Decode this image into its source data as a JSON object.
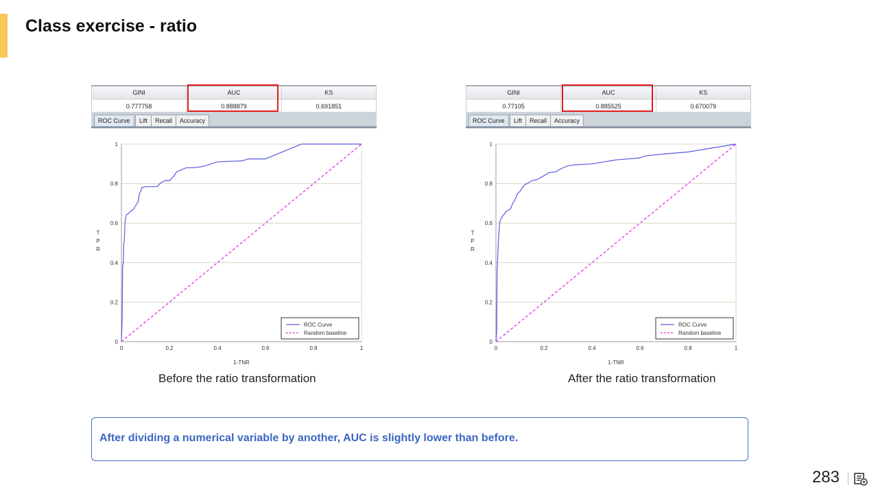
{
  "slide": {
    "title": "Class exercise - ratio",
    "page_number": "283",
    "note": "After dividing a numerical variable by another, AUC is slightly lower than before.",
    "colors": {
      "accent": "#f7c75a",
      "roc": "#5a5ae0",
      "baseline": "#e62ee6",
      "highlight": "#e21b1b",
      "note": "#3c66c2"
    }
  },
  "panels": [
    {
      "caption": "Before the ratio transformation",
      "metrics": {
        "headers": [
          "GINI",
          "AUC",
          "KS"
        ],
        "values": [
          "0.777758",
          "0.888879",
          "0.691851"
        ]
      },
      "tabs": [
        "ROC Curve",
        "Lift",
        "Recall",
        "Accuracy"
      ],
      "active_tab": "ROC Curve"
    },
    {
      "caption": "After the ratio transformation",
      "metrics": {
        "headers": [
          "GINI",
          "AUC",
          "KS"
        ],
        "values": [
          "0.77105",
          "0.885525",
          "0.670079"
        ]
      },
      "tabs": [
        "ROC Curve",
        "Lift",
        "Recall",
        "Accuracy"
      ],
      "active_tab": "ROC Curve"
    }
  ],
  "chart_data": [
    {
      "type": "line",
      "xlabel": "1-TNR",
      "ylabel": "TPR",
      "xlim": [
        0,
        1
      ],
      "ylim": [
        0,
        1
      ],
      "x_ticks": [
        "0",
        "0.2",
        "0.4",
        "0.6",
        "0.8",
        "1"
      ],
      "y_ticks": [
        "0",
        "0.2",
        "0.4",
        "0.6",
        "0.8",
        "1"
      ],
      "legend_position": "bottom-right",
      "series": [
        {
          "name": "ROC Curve",
          "x": [
            0,
            0.003,
            0.005,
            0.008,
            0.01,
            0.012,
            0.015,
            0.018,
            0.02,
            0.025,
            0.03,
            0.04,
            0.045,
            0.05,
            0.055,
            0.06,
            0.065,
            0.07,
            0.075,
            0.08,
            0.085,
            0.09,
            0.1,
            0.12,
            0.15,
            0.16,
            0.18,
            0.2,
            0.22,
            0.23,
            0.24,
            0.25,
            0.27,
            0.3,
            0.33,
            0.35,
            0.4,
            0.5,
            0.53,
            0.6,
            0.62,
            0.65,
            0.7,
            0.75,
            1
          ],
          "y": [
            0,
            0.1,
            0.38,
            0.4,
            0.5,
            0.51,
            0.6,
            0.63,
            0.64,
            0.645,
            0.65,
            0.66,
            0.665,
            0.67,
            0.68,
            0.69,
            0.7,
            0.71,
            0.75,
            0.76,
            0.78,
            0.78,
            0.785,
            0.785,
            0.785,
            0.8,
            0.815,
            0.815,
            0.84,
            0.86,
            0.865,
            0.87,
            0.88,
            0.88,
            0.885,
            0.89,
            0.91,
            0.915,
            0.925,
            0.925,
            0.935,
            0.95,
            0.975,
            1,
            1
          ]
        },
        {
          "name": "Random baseline",
          "x": [
            0,
            1
          ],
          "y": [
            0,
            1
          ]
        }
      ]
    },
    {
      "type": "line",
      "xlabel": "1-TNR",
      "ylabel": "TPR",
      "xlim": [
        0,
        1
      ],
      "ylim": [
        0,
        1
      ],
      "x_ticks": [
        "0",
        "0.2",
        "0.4",
        "0.6",
        "0.8",
        "1"
      ],
      "y_ticks": [
        "0",
        "0.2",
        "0.4",
        "0.6",
        "0.8",
        "1"
      ],
      "legend_position": "bottom-right",
      "series": [
        {
          "name": "ROC Curve",
          "x": [
            0,
            0.003,
            0.005,
            0.008,
            0.01,
            0.015,
            0.02,
            0.025,
            0.03,
            0.035,
            0.04,
            0.05,
            0.06,
            0.07,
            0.08,
            0.09,
            0.1,
            0.11,
            0.12,
            0.13,
            0.15,
            0.17,
            0.2,
            0.22,
            0.25,
            0.27,
            0.3,
            0.33,
            0.4,
            0.45,
            0.5,
            0.6,
            0.62,
            0.7,
            0.8,
            0.9,
            1
          ],
          "y": [
            0,
            0.05,
            0.35,
            0.45,
            0.5,
            0.6,
            0.62,
            0.63,
            0.64,
            0.645,
            0.655,
            0.665,
            0.67,
            0.7,
            0.72,
            0.75,
            0.76,
            0.78,
            0.795,
            0.8,
            0.815,
            0.82,
            0.84,
            0.855,
            0.86,
            0.875,
            0.89,
            0.895,
            0.9,
            0.91,
            0.92,
            0.93,
            0.94,
            0.95,
            0.96,
            0.98,
            1
          ]
        },
        {
          "name": "Random baseline",
          "x": [
            0,
            1
          ],
          "y": [
            0,
            1
          ]
        }
      ]
    }
  ]
}
